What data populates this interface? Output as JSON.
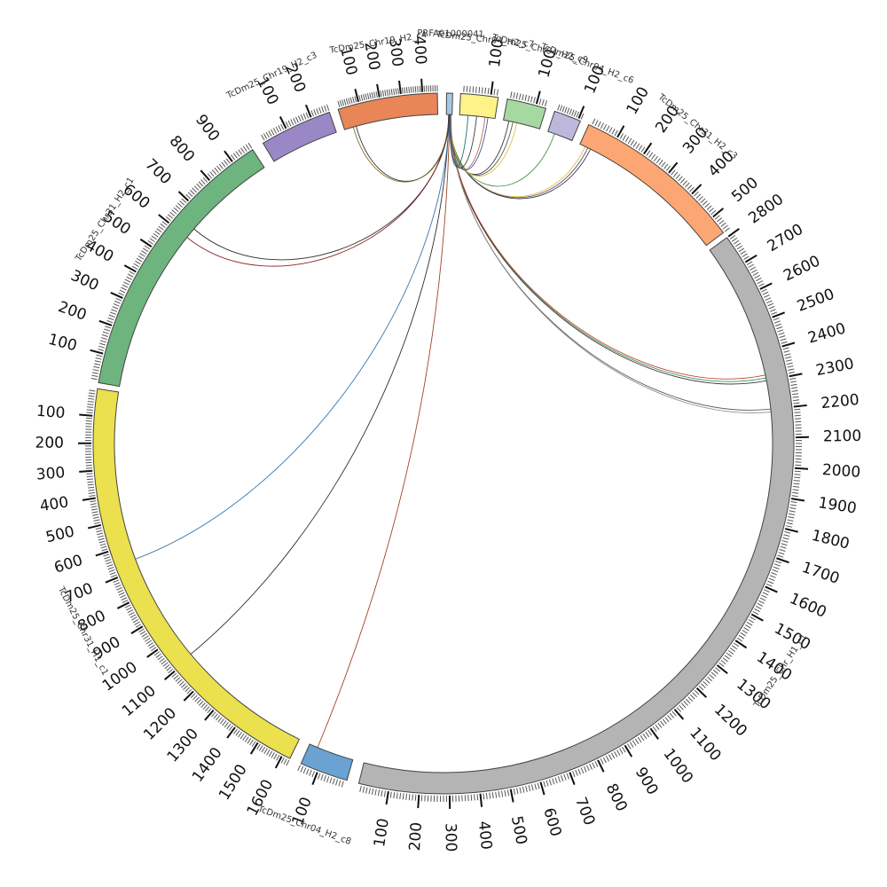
{
  "diagram": {
    "type": "circos",
    "segments": [
      {
        "id": "PRFA01000041",
        "label": "PRFA01000041",
        "length": 12,
        "color": "#a6c8e2",
        "ticks": false
      },
      {
        "id": "c7",
        "label": "TcDm25_Chr04_H2_c7",
        "length": 125,
        "color": "#fdf389"
      },
      {
        "id": "c9",
        "label": "TcDm25_Chr04_H2_c9",
        "length": 135,
        "color": "#a6d9a2"
      },
      {
        "id": "c6",
        "label": "TcDm25_Chr04_H2_c6",
        "length": 110,
        "color": "#bcb8dc"
      },
      {
        "id": "chr31h2c3",
        "label": "TcDm25_Chr31_H2_c3",
        "length": 560,
        "color": "#fca773"
      },
      {
        "id": "chrh1c1",
        "label": "TcDm25_Chr_H1_c1",
        "length": 2800,
        "color": "#b4b4b4",
        "reverse": true
      },
      {
        "id": "c8",
        "label": "TcDm25_Chr04_H2_c8",
        "length": 160,
        "color": "#6aa2d1"
      },
      {
        "id": "chr31h1c1",
        "label": "TcDm25_Chr31_H1_c1",
        "length": 1630,
        "color": "#ebe04e",
        "reverse": true
      },
      {
        "id": "chr31h2c1",
        "label": "TcDm25_Chr31_H2_c1",
        "length": 980,
        "color": "#6db47e"
      },
      {
        "id": "chr19c3",
        "label": "TcDm25_Chr19_H2_c3",
        "length": 270,
        "color": "#9a88c6"
      },
      {
        "id": "chr19c4",
        "label": "TcDm25_Chr19_H2_c4",
        "length": 470,
        "color": "#e88657"
      }
    ],
    "links": [
      {
        "source": [
          "PRFA01000041",
          6
        ],
        "target": [
          "chr31h2c1",
          640
        ],
        "color": "#222222"
      },
      {
        "source": [
          "PRFA01000041",
          5
        ],
        "target": [
          "chr31h2c1",
          600
        ],
        "color": "#8b1a1a"
      },
      {
        "source": [
          "PRFA01000041",
          6
        ],
        "target": [
          "chr19c4",
          60
        ],
        "color": "#222222"
      },
      {
        "source": [
          "PRFA01000041",
          5
        ],
        "target": [
          "chr19c4",
          45
        ],
        "color": "#7a6a20"
      },
      {
        "source": [
          "PRFA01000041",
          5
        ],
        "target": [
          "chr31h1c1",
          1090
        ],
        "color": "#222222"
      },
      {
        "source": [
          "PRFA01000041",
          6
        ],
        "target": [
          "chr31h1c1",
          660
        ],
        "color": "#2b6fa8"
      },
      {
        "source": [
          "PRFA01000041",
          7
        ],
        "target": [
          "c8",
          130
        ],
        "color": "#9b3a1a"
      },
      {
        "source": [
          "PRFA01000041",
          8
        ],
        "target": [
          "chrh1c1",
          2310
        ],
        "color": "#2e8b57"
      },
      {
        "source": [
          "PRFA01000041",
          8
        ],
        "target": [
          "chrh1c1",
          2300
        ],
        "color": "#333333"
      },
      {
        "source": [
          "PRFA01000041",
          9
        ],
        "target": [
          "chrh1c1",
          2320
        ],
        "color": "#c23b22"
      },
      {
        "source": [
          "PRFA01000041",
          9
        ],
        "target": [
          "chrh1c1",
          2200
        ],
        "color": "#555555"
      },
      {
        "source": [
          "PRFA01000041",
          10
        ],
        "target": [
          "chrh1c1",
          2190
        ],
        "color": "#888888"
      },
      {
        "source": [
          "PRFA01000041",
          7
        ],
        "target": [
          "chr31h2c3",
          20
        ],
        "color": "#e0c030"
      },
      {
        "source": [
          "PRFA01000041",
          7
        ],
        "target": [
          "chr31h2c3",
          30
        ],
        "color": "#5a4a8a"
      },
      {
        "source": [
          "PRFA01000041",
          6
        ],
        "target": [
          "chr31h2c3",
          40
        ],
        "color": "#333333"
      },
      {
        "source": [
          "PRFA01000041",
          8
        ],
        "target": [
          "c6",
          30
        ],
        "color": "#3a8a3a"
      },
      {
        "source": [
          "PRFA01000041",
          8
        ],
        "target": [
          "c9",
          20
        ],
        "color": "#333333"
      },
      {
        "source": [
          "PRFA01000041",
          9
        ],
        "target": [
          "c9",
          35
        ],
        "color": "#555555"
      },
      {
        "source": [
          "PRFA01000041",
          9
        ],
        "target": [
          "c9",
          50
        ],
        "color": "#e0c030"
      },
      {
        "source": [
          "PRFA01000041",
          8
        ],
        "target": [
          "c7",
          30
        ],
        "color": "#1a6a6a"
      },
      {
        "source": [
          "PRFA01000041",
          7
        ],
        "target": [
          "c7",
          60
        ],
        "color": "#333333"
      },
      {
        "source": [
          "PRFA01000041",
          8
        ],
        "target": [
          "c7",
          90
        ],
        "color": "#c06040"
      },
      {
        "source": [
          "PRFA01000041",
          9
        ],
        "target": [
          "c7",
          100
        ],
        "color": "#2a5a9a"
      }
    ]
  }
}
